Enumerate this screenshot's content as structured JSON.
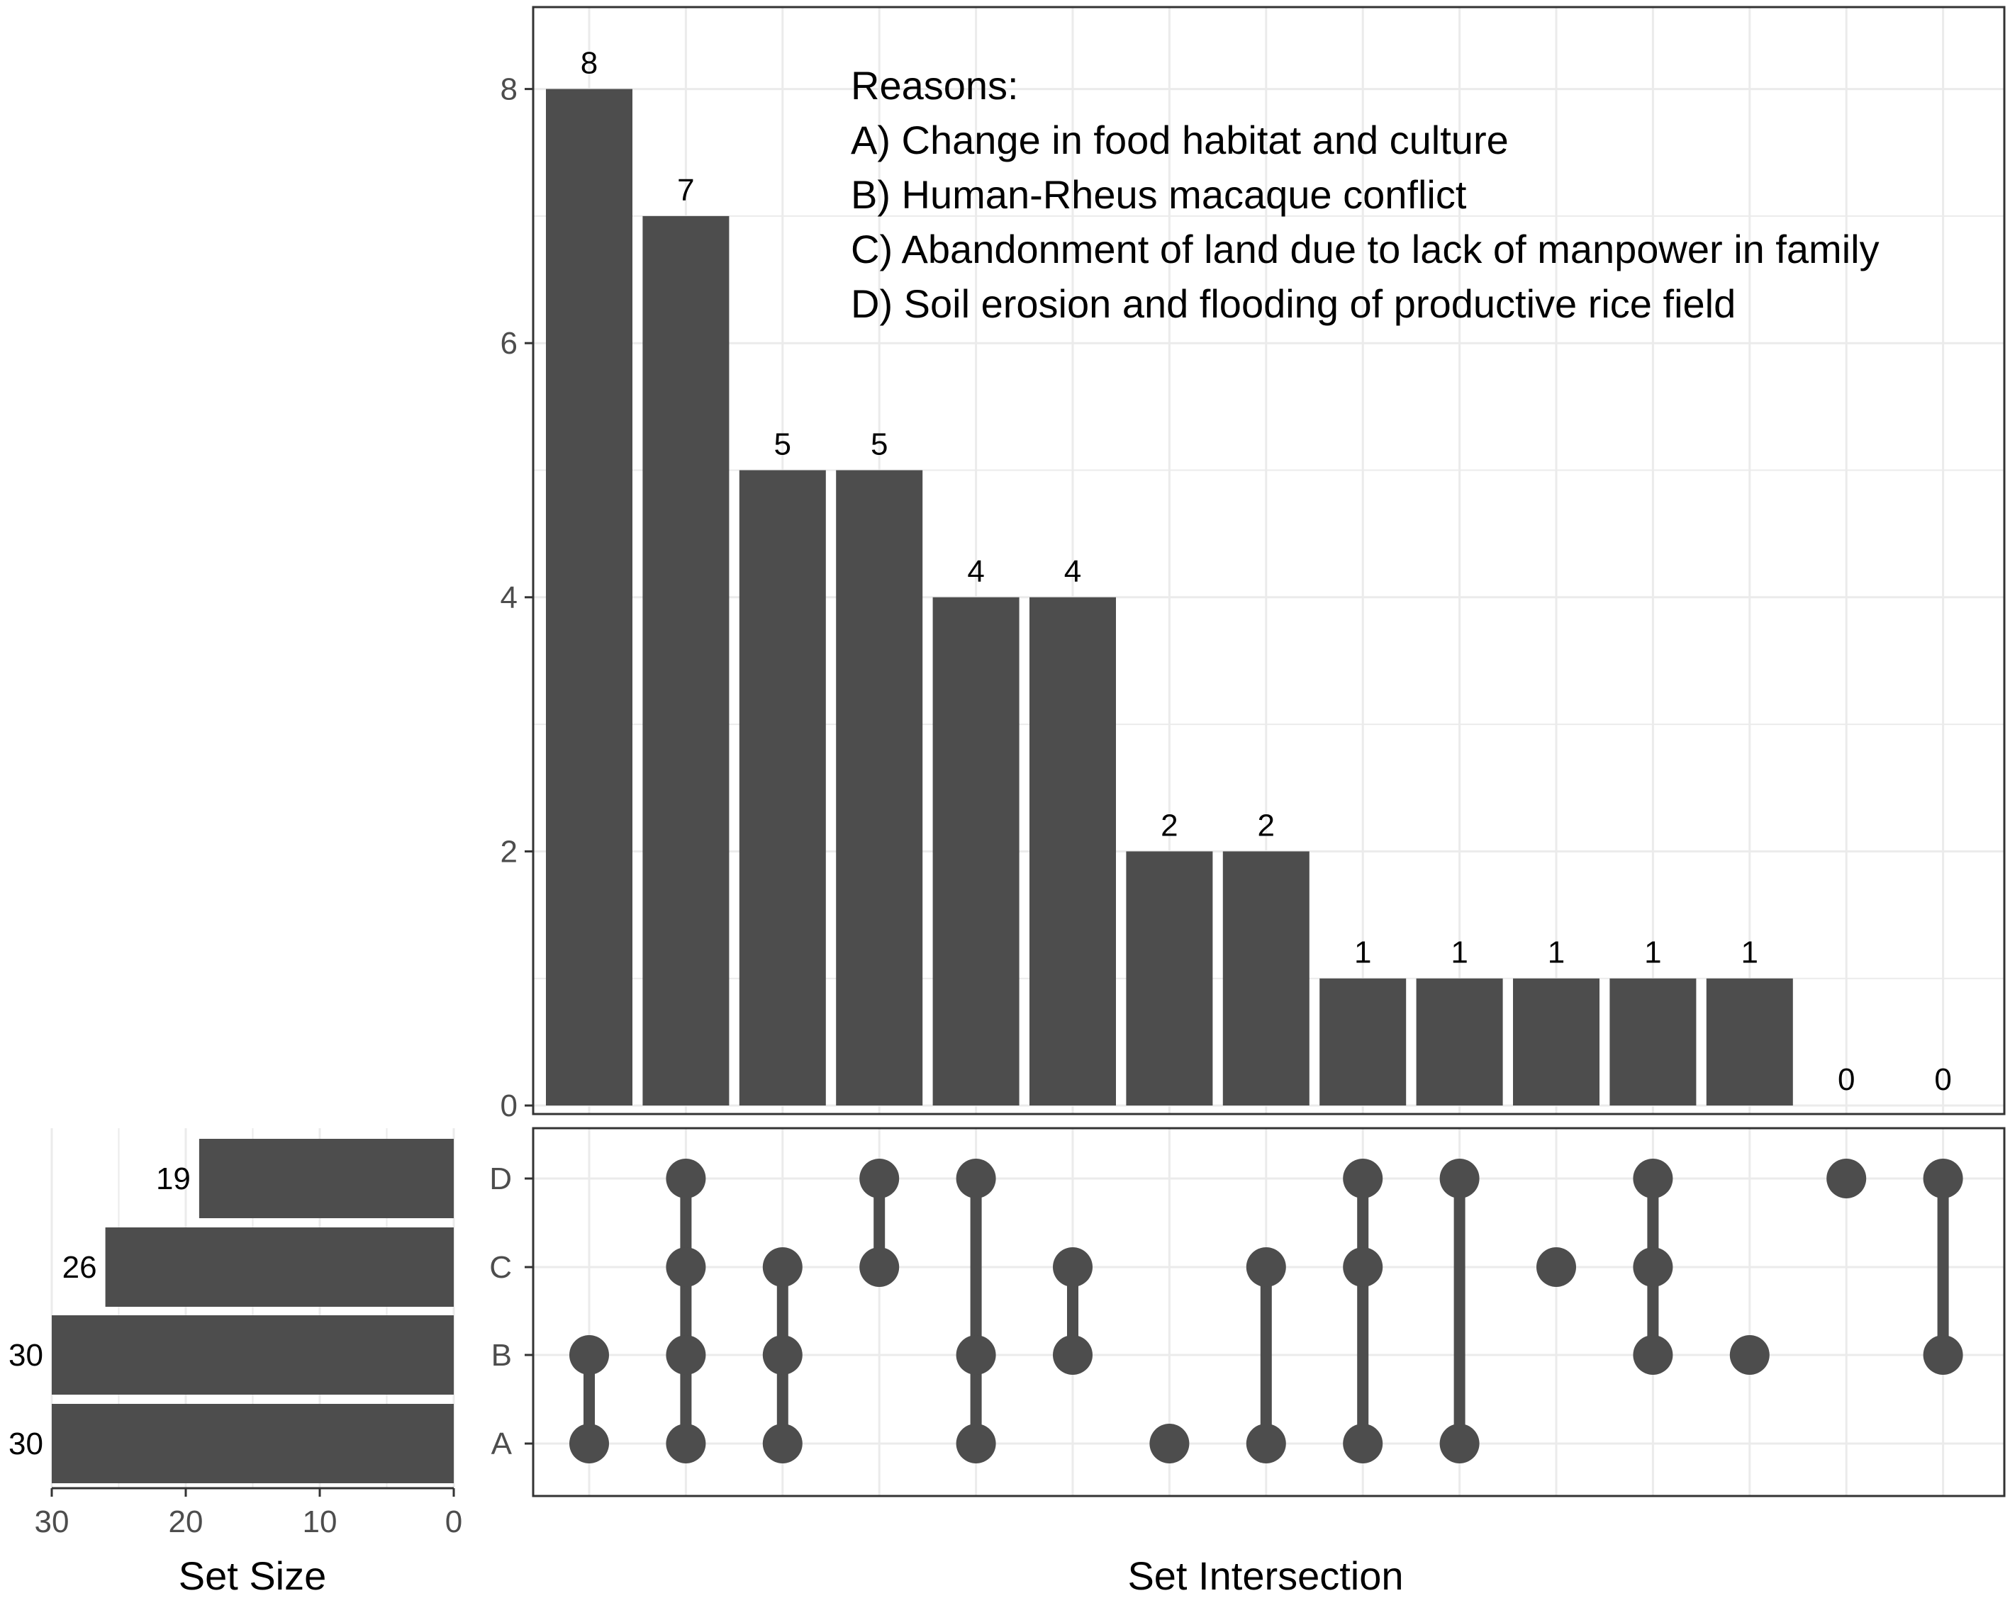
{
  "chart_data": {
    "type": "upset",
    "sets": [
      "A",
      "B",
      "C",
      "D"
    ],
    "set_sizes": [
      {
        "set": "D",
        "size": 19,
        "label": "19"
      },
      {
        "set": "C",
        "size": 26,
        "label": "26"
      },
      {
        "set": "B",
        "size": 30,
        "label": "30"
      },
      {
        "set": "A",
        "size": 30,
        "label": "30"
      }
    ],
    "set_size_axis": {
      "title": "Set Size",
      "ticks": [
        "30",
        "20",
        "10",
        "0"
      ],
      "max": 30
    },
    "intersection_axis": {
      "title": "Set Intersection",
      "ylim": [
        0,
        8.6
      ],
      "ticks": [
        "0",
        "2",
        "4",
        "6",
        "8"
      ]
    },
    "intersections": [
      {
        "members": [
          "A",
          "B"
        ],
        "value": 8,
        "label": "8"
      },
      {
        "members": [
          "A",
          "B",
          "C",
          "D"
        ],
        "value": 7,
        "label": "7"
      },
      {
        "members": [
          "A",
          "B",
          "C"
        ],
        "value": 5,
        "label": "5"
      },
      {
        "members": [
          "C",
          "D"
        ],
        "value": 5,
        "label": "5"
      },
      {
        "members": [
          "A",
          "B",
          "D"
        ],
        "value": 4,
        "label": "4"
      },
      {
        "members": [
          "B",
          "C"
        ],
        "value": 4,
        "label": "4"
      },
      {
        "members": [
          "A"
        ],
        "value": 2,
        "label": "2"
      },
      {
        "members": [
          "A",
          "C"
        ],
        "value": 2,
        "label": "2"
      },
      {
        "members": [
          "A",
          "C",
          "D"
        ],
        "value": 1,
        "label": "1"
      },
      {
        "members": [
          "A",
          "D"
        ],
        "value": 1,
        "label": "1"
      },
      {
        "members": [
          "C"
        ],
        "value": 1,
        "label": "1"
      },
      {
        "members": [
          "B",
          "C",
          "D"
        ],
        "value": 1,
        "label": "1"
      },
      {
        "members": [
          "B"
        ],
        "value": 1,
        "label": "1"
      },
      {
        "members": [
          "D"
        ],
        "value": 0,
        "label": "0"
      },
      {
        "members": [
          "B",
          "D"
        ],
        "value": 0,
        "label": "0"
      }
    ],
    "annotation": {
      "title": "Reasons:",
      "items": [
        "A)  Change in food habitat and culture",
        "B)  Human-Rheus macaque conflict",
        "C)  Abandonment of land due to lack of manpower in family",
        "D)  Soil erosion and flooding of productive rice field"
      ]
    },
    "colors": {
      "bar": "#4d4d4d",
      "grid": "#ebebeb",
      "frame": "#333333",
      "dot": "#4d4d4d"
    }
  }
}
